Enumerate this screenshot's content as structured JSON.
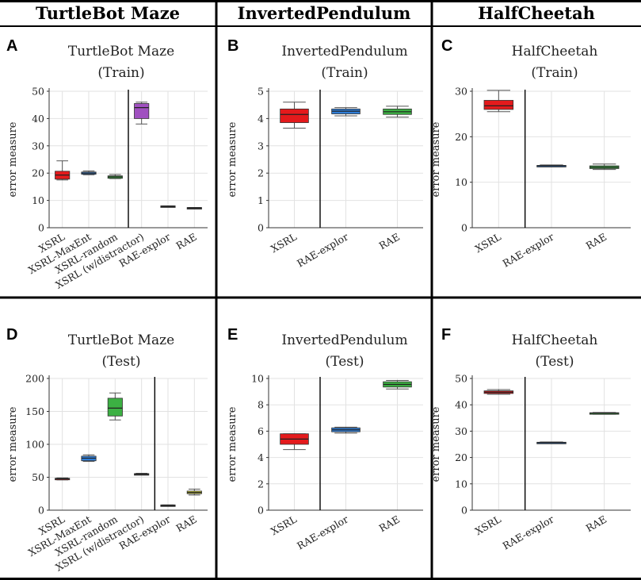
{
  "headers": [
    "TurtleBot Maze",
    "InvertedPendulum",
    "HalfCheetah"
  ],
  "chart_data": [
    {
      "label": "A",
      "type": "box",
      "title": [
        "TurtleBot Maze",
        "(Train)"
      ],
      "ylabel": "error measure",
      "ylim": [
        0,
        50
      ],
      "yticks": [
        0,
        10,
        20,
        30,
        40,
        50
      ],
      "divider_after": 3,
      "grid": true,
      "categories": [
        "XSRL",
        "XSRL-MaxEnt",
        "XSRL-random",
        "XSRL (w/distractor)",
        "RAE-explor",
        "RAE"
      ],
      "boxes": [
        {
          "min": 17.5,
          "q1": 17.8,
          "median": 19.3,
          "q3": 20.7,
          "max": 24.5,
          "color": "#e41a1c"
        },
        {
          "min": 19.4,
          "q1": 19.6,
          "median": 20.0,
          "q3": 20.4,
          "max": 20.8,
          "color": "#2f7ed8"
        },
        {
          "min": 18.0,
          "q1": 18.1,
          "median": 18.6,
          "q3": 19.0,
          "max": 19.5,
          "color": "#3cb043"
        },
        {
          "min": 38.0,
          "q1": 40.0,
          "median": 44.0,
          "q3": 45.5,
          "max": 46.0,
          "color": "#a050c0"
        },
        {
          "min": 7.8,
          "q1": 7.8,
          "median": 7.9,
          "q3": 8.0,
          "max": 8.0,
          "color": "#333333"
        },
        {
          "min": 7.2,
          "q1": 7.2,
          "median": 7.3,
          "q3": 7.4,
          "max": 7.4,
          "color": "#333333"
        }
      ]
    },
    {
      "label": "B",
      "type": "box",
      "title": [
        "InvertedPendulum",
        "(Train)"
      ],
      "ylabel": "error measure",
      "ylim": [
        0,
        5
      ],
      "yticks": [
        0,
        1,
        2,
        3,
        4,
        5
      ],
      "divider_after": 1,
      "grid": true,
      "categories": [
        "XSRL",
        "RAE-explor",
        "RAE"
      ],
      "boxes": [
        {
          "min": 3.65,
          "q1": 3.85,
          "median": 4.15,
          "q3": 4.35,
          "max": 4.6,
          "color": "#e41a1c"
        },
        {
          "min": 4.1,
          "q1": 4.17,
          "median": 4.27,
          "q3": 4.35,
          "max": 4.4,
          "color": "#2f7ed8"
        },
        {
          "min": 4.05,
          "q1": 4.15,
          "median": 4.25,
          "q3": 4.35,
          "max": 4.45,
          "color": "#3cb043"
        }
      ]
    },
    {
      "label": "C",
      "type": "box",
      "title": [
        "HalfCheetah",
        "(Train)"
      ],
      "ylabel": "error measure",
      "ylim": [
        0,
        30
      ],
      "yticks": [
        0,
        10,
        20,
        30
      ],
      "divider_after": 1,
      "grid": true,
      "categories": [
        "XSRL",
        "RAE-explor",
        "RAE"
      ],
      "boxes": [
        {
          "min": 25.5,
          "q1": 26.0,
          "median": 26.8,
          "q3": 28.0,
          "max": 30.2,
          "color": "#e41a1c"
        },
        {
          "min": 13.4,
          "q1": 13.5,
          "median": 13.6,
          "q3": 13.7,
          "max": 13.8,
          "color": "#2f7ed8"
        },
        {
          "min": 12.8,
          "q1": 13.0,
          "median": 13.3,
          "q3": 13.6,
          "max": 14.0,
          "color": "#3cb043"
        }
      ]
    },
    {
      "label": "D",
      "type": "box",
      "title": [
        "TurtleBot Maze",
        "(Test)"
      ],
      "ylabel": "error measure",
      "ylim": [
        0,
        200
      ],
      "yticks": [
        0,
        50,
        100,
        150,
        200
      ],
      "divider_after": 4,
      "grid": true,
      "categories": [
        "XSRL",
        "XSRL-MaxEnt",
        "XSRL-random",
        "XSRL (w/distractor)",
        "RAE-explor",
        "RAE"
      ],
      "boxes": [
        {
          "min": 46,
          "q1": 46.5,
          "median": 47.5,
          "q3": 48.5,
          "max": 49,
          "color": "#e41a1c"
        },
        {
          "min": 74,
          "q1": 75,
          "median": 79,
          "q3": 82,
          "max": 84,
          "color": "#2f7ed8"
        },
        {
          "min": 137,
          "q1": 143,
          "median": 155,
          "q3": 170,
          "max": 178,
          "color": "#3cb043"
        },
        {
          "min": 54,
          "q1": 54.5,
          "median": 55,
          "q3": 55.5,
          "max": 56,
          "color": "#333333"
        },
        {
          "min": 7,
          "q1": 7,
          "median": 7.5,
          "q3": 8,
          "max": 8,
          "color": "#333333"
        },
        {
          "min": 23,
          "q1": 25,
          "median": 27,
          "q3": 29,
          "max": 32,
          "color": "#c8c832"
        }
      ]
    },
    {
      "label": "E",
      "type": "box",
      "title": [
        "InvertedPendulum",
        "(Test)"
      ],
      "ylabel": "error measure",
      "ylim": [
        0,
        10
      ],
      "yticks": [
        0,
        2,
        4,
        6,
        8,
        10
      ],
      "divider_after": 1,
      "grid": true,
      "categories": [
        "XSRL",
        "RAE-explor",
        "RAE"
      ],
      "boxes": [
        {
          "min": 4.6,
          "q1": 5.0,
          "median": 5.4,
          "q3": 5.8,
          "max": 5.8,
          "color": "#e41a1c"
        },
        {
          "min": 5.85,
          "q1": 5.95,
          "median": 6.1,
          "q3": 6.25,
          "max": 6.3,
          "color": "#2f7ed8"
        },
        {
          "min": 9.2,
          "q1": 9.35,
          "median": 9.55,
          "q3": 9.75,
          "max": 9.85,
          "color": "#3cb043"
        }
      ]
    },
    {
      "label": "F",
      "type": "box",
      "title": [
        "HalfCheetah",
        "(Test)"
      ],
      "ylabel": "error measure",
      "ylim": [
        0,
        50
      ],
      "yticks": [
        0,
        10,
        20,
        30,
        40,
        50
      ],
      "divider_after": 1,
      "grid": true,
      "categories": [
        "XSRL",
        "RAE-explor",
        "RAE"
      ],
      "boxes": [
        {
          "min": 44.0,
          "q1": 44.3,
          "median": 44.8,
          "q3": 45.3,
          "max": 45.8,
          "color": "#e41a1c"
        },
        {
          "min": 25.3,
          "q1": 25.4,
          "median": 25.6,
          "q3": 25.8,
          "max": 25.9,
          "color": "#2f7ed8"
        },
        {
          "min": 36.4,
          "q1": 36.5,
          "median": 36.8,
          "q3": 37.0,
          "max": 37.1,
          "color": "#3cb043"
        }
      ]
    }
  ]
}
